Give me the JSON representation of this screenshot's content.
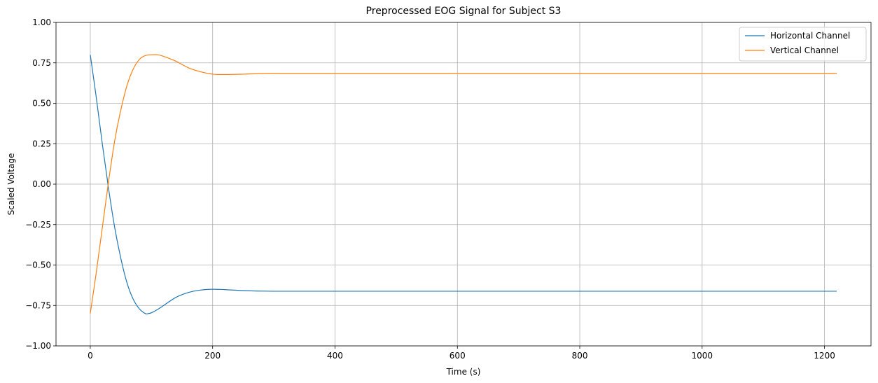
{
  "chart_data": {
    "type": "line",
    "title": "Preprocessed EOG Signal for Subject S3",
    "xlabel": "Time (s)",
    "ylabel": "Scaled Voltage",
    "xlim": [
      -56,
      1276
    ],
    "ylim": [
      -1.0,
      1.0
    ],
    "xticks": [
      0,
      200,
      400,
      600,
      800,
      1000,
      1200
    ],
    "xtick_labels": [
      "0",
      "200",
      "400",
      "600",
      "800",
      "1000",
      "1200"
    ],
    "yticks": [
      -1.0,
      -0.75,
      -0.5,
      -0.25,
      0.0,
      0.25,
      0.5,
      0.75,
      1.0
    ],
    "ytick_labels": [
      "−1.00",
      "−0.75",
      "−0.50",
      "−0.25",
      "0.00",
      "0.25",
      "0.50",
      "0.75",
      "1.00"
    ],
    "grid": true,
    "legend_position": "top-right",
    "series": [
      {
        "name": "Horizontal Channel",
        "color": "#1f77b4",
        "x": [
          0,
          10,
          20,
          30,
          40,
          50,
          60,
          70,
          80,
          90,
          95,
          100,
          110,
          120,
          140,
          160,
          180,
          200,
          220,
          250,
          300,
          400,
          600,
          800,
          1000,
          1220
        ],
        "y": [
          0.8,
          0.53,
          0.24,
          -0.03,
          -0.27,
          -0.46,
          -0.61,
          -0.71,
          -0.77,
          -0.8,
          -0.8,
          -0.795,
          -0.775,
          -0.75,
          -0.7,
          -0.67,
          -0.655,
          -0.65,
          -0.652,
          -0.658,
          -0.662,
          -0.662,
          -0.662,
          -0.662,
          -0.662,
          -0.662
        ]
      },
      {
        "name": "Vertical Channel",
        "color": "#ff7f0e",
        "x": [
          0,
          10,
          20,
          30,
          40,
          50,
          60,
          70,
          80,
          90,
          100,
          110,
          120,
          140,
          160,
          180,
          200,
          220,
          250,
          300,
          400,
          600,
          800,
          1000,
          1220
        ],
        "y": [
          -0.8,
          -0.54,
          -0.26,
          0.02,
          0.27,
          0.46,
          0.61,
          0.71,
          0.77,
          0.795,
          0.8,
          0.8,
          0.79,
          0.76,
          0.72,
          0.695,
          0.68,
          0.678,
          0.68,
          0.685,
          0.685,
          0.685,
          0.685,
          0.685,
          0.685
        ]
      }
    ]
  }
}
